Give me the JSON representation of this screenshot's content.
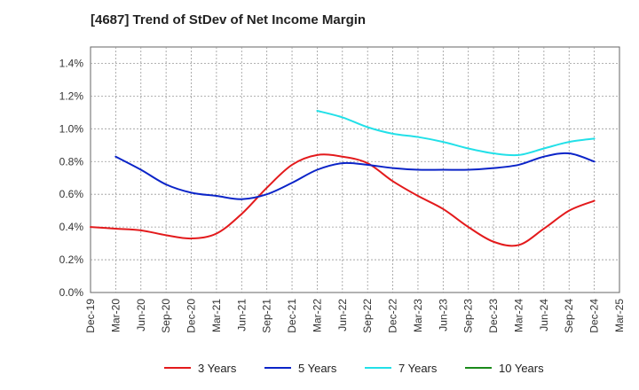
{
  "chart_data": {
    "type": "line",
    "title": "[4687]  Trend of StDev of Net Income Margin",
    "xlabel": "",
    "ylabel": "",
    "x_ticks": [
      "Dec-19",
      "Mar-20",
      "Jun-20",
      "Sep-20",
      "Dec-20",
      "Mar-21",
      "Jun-21",
      "Sep-21",
      "Dec-21",
      "Mar-22",
      "Jun-22",
      "Sep-22",
      "Dec-22",
      "Mar-23",
      "Jun-23",
      "Sep-23",
      "Dec-23",
      "Mar-24",
      "Jun-24",
      "Sep-24",
      "Dec-24",
      "Mar-25"
    ],
    "y_ticks": [
      "0.0%",
      "0.2%",
      "0.4%",
      "0.6%",
      "0.8%",
      "1.0%",
      "1.2%",
      "1.4%"
    ],
    "ylim": [
      0,
      1.5
    ],
    "grid": true,
    "legend_position": "bottom",
    "series": [
      {
        "name": "3 Years",
        "color": "#e31a1c",
        "x": [
          "Dec-19",
          "Mar-20",
          "Jun-20",
          "Sep-20",
          "Dec-20",
          "Mar-21",
          "Jun-21",
          "Sep-21",
          "Dec-21",
          "Mar-22",
          "Jun-22",
          "Sep-22",
          "Dec-22",
          "Mar-23",
          "Jun-23",
          "Sep-23",
          "Dec-23",
          "Mar-24",
          "Jun-24",
          "Sep-24",
          "Dec-24"
        ],
        "values": [
          0.4,
          0.39,
          0.38,
          0.35,
          0.33,
          0.36,
          0.48,
          0.64,
          0.78,
          0.84,
          0.83,
          0.79,
          0.68,
          0.59,
          0.51,
          0.4,
          0.31,
          0.29,
          0.39,
          0.5,
          0.56
        ]
      },
      {
        "name": "5 Years",
        "color": "#0b24c8",
        "x": [
          "Mar-20",
          "Jun-20",
          "Sep-20",
          "Dec-20",
          "Mar-21",
          "Jun-21",
          "Sep-21",
          "Dec-21",
          "Mar-22",
          "Jun-22",
          "Sep-22",
          "Dec-22",
          "Mar-23",
          "Jun-23",
          "Sep-23",
          "Dec-23",
          "Mar-24",
          "Jun-24",
          "Sep-24",
          "Dec-24"
        ],
        "values": [
          0.83,
          0.75,
          0.66,
          0.61,
          0.59,
          0.57,
          0.6,
          0.67,
          0.75,
          0.79,
          0.78,
          0.76,
          0.75,
          0.75,
          0.75,
          0.76,
          0.78,
          0.83,
          0.85,
          0.8
        ]
      },
      {
        "name": "7 Years",
        "color": "#22e0e8",
        "x": [
          "Mar-22",
          "Jun-22",
          "Sep-22",
          "Dec-22",
          "Mar-23",
          "Jun-23",
          "Sep-23",
          "Dec-23",
          "Mar-24",
          "Jun-24",
          "Sep-24",
          "Dec-24"
        ],
        "values": [
          1.11,
          1.07,
          1.01,
          0.97,
          0.95,
          0.92,
          0.88,
          0.85,
          0.84,
          0.88,
          0.92,
          0.94
        ]
      },
      {
        "name": "10 Years",
        "color": "#1a8a1a",
        "x": [],
        "values": []
      }
    ]
  }
}
